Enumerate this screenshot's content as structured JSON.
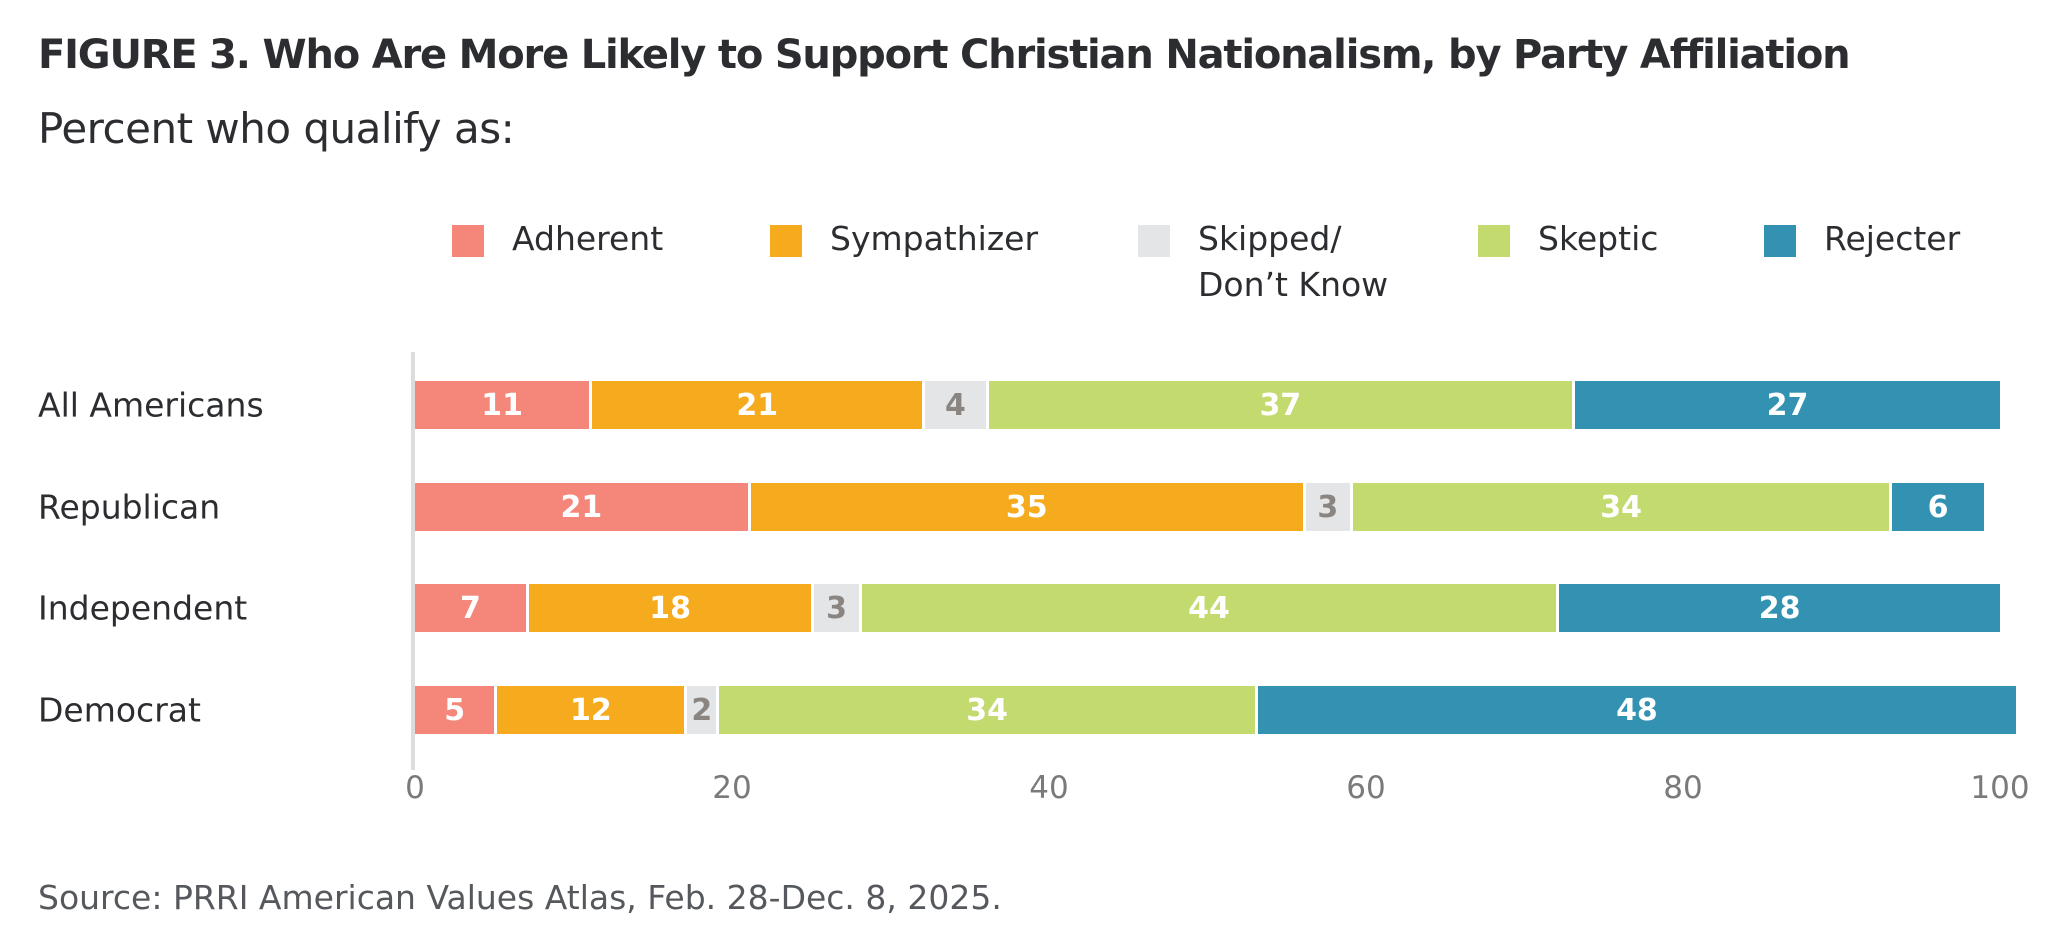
{
  "chart_data": {
    "type": "bar",
    "orientation": "horizontal",
    "stacked": true,
    "title": "FIGURE 3.  Who Are More Likely to Support Christian Nationalism, by Party Affiliation",
    "subtitle": "Percent who qualify as:",
    "xlabel": "",
    "ylabel": "",
    "xlim": [
      0,
      100
    ],
    "x_ticks": [
      "0",
      "20",
      "40",
      "60",
      "80",
      "100"
    ],
    "grid": false,
    "legend_position": "top",
    "categories": [
      "All Americans",
      "Republican",
      "Independent",
      "Democrat"
    ],
    "series": [
      {
        "name": "Adherent",
        "color": "#f4877a",
        "label_color": "#ffffff",
        "values": [
          11,
          21,
          7,
          5
        ]
      },
      {
        "name": "Sympathizer",
        "color": "#f6aa1e",
        "label_color": "#ffffff",
        "values": [
          21,
          35,
          18,
          12
        ]
      },
      {
        "name": "Skipped/\nDon’t Know",
        "color": "#e4e5e7",
        "label_color": "#8a8581",
        "values": [
          4,
          3,
          3,
          2
        ]
      },
      {
        "name": "Skeptic",
        "color": "#c2da6e",
        "label_color": "#ffffff",
        "values": [
          37,
          34,
          44,
          34
        ]
      },
      {
        "name": "Rejecter",
        "color": "#3392b1",
        "label_color": "#ffffff",
        "values": [
          27,
          6,
          28,
          48
        ]
      }
    ],
    "source": "Source: PRRI American Values Atlas, Feb. 28-Dec. 8, 2025."
  },
  "legend": [
    {
      "label_line1": "Adherent",
      "label_line2": ""
    },
    {
      "label_line1": "Sympathizer",
      "label_line2": ""
    },
    {
      "label_line1": "Skipped/",
      "label_line2": "Don’t Know"
    },
    {
      "label_line1": "Skeptic",
      "label_line2": ""
    },
    {
      "label_line1": "Rejecter",
      "label_line2": ""
    }
  ]
}
